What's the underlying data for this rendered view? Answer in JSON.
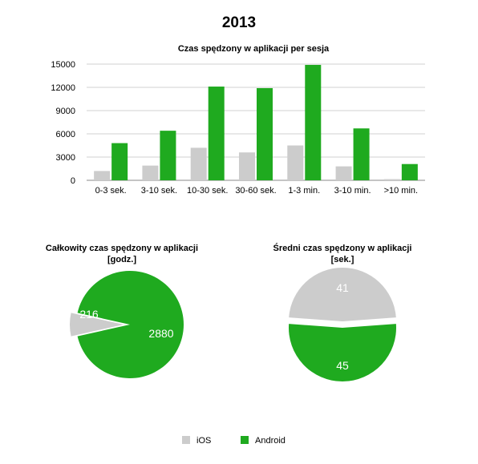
{
  "page": {
    "title": "2013"
  },
  "colors": {
    "ios": "#cccccc",
    "android": "#1faa1f",
    "grid": "#d0d0d0",
    "axis": "#888888"
  },
  "legend": {
    "items": [
      {
        "label": "iOS",
        "color": "#cccccc"
      },
      {
        "label": "Android",
        "color": "#1faa1f"
      }
    ]
  },
  "chart_data": [
    {
      "type": "bar",
      "title": "Czas spędzony w aplikacji per sesja",
      "categories": [
        "0-3 sek.",
        "3-10 sek.",
        "10-30 sek.",
        "30-60 sek.",
        "1-3 min.",
        "3-10 min.",
        ">10 min."
      ],
      "series": [
        {
          "name": "iOS",
          "values": [
            1200,
            1900,
            4200,
            3600,
            4500,
            1800,
            150
          ]
        },
        {
          "name": "Android",
          "values": [
            4800,
            6400,
            12100,
            11900,
            14900,
            6700,
            2100
          ]
        }
      ],
      "yticks": [
        "0",
        "3000",
        "6000",
        "9000",
        "12000",
        "15000"
      ],
      "ylim": [
        0,
        15000
      ],
      "grid": true
    },
    {
      "type": "pie",
      "title": "Całkowity czas spędzony w aplikacji [godz.]",
      "title_lines": [
        "Całkowity czas spędzony w aplikacji",
        "[godz.]"
      ],
      "slices": [
        {
          "name": "iOS",
          "value": 216,
          "label": "216"
        },
        {
          "name": "Android",
          "value": 2880,
          "label": "2880"
        }
      ]
    },
    {
      "type": "pie",
      "title": "Średni czas spędzony w aplikacji [sek.]",
      "title_lines": [
        "Średni czas spędzony w aplikacji",
        "[sek.]"
      ],
      "slices": [
        {
          "name": "iOS",
          "value": 41,
          "label": "41"
        },
        {
          "name": "Android",
          "value": 45,
          "label": "45"
        }
      ]
    }
  ]
}
